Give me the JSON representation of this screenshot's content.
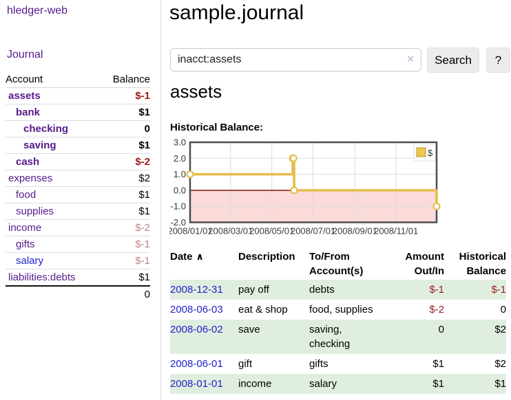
{
  "app": {
    "brand": "hledger-web",
    "nav_journal": "Journal"
  },
  "header": {
    "title": "sample.journal"
  },
  "search": {
    "query": "inacct:assets",
    "clear_icon": "×",
    "button": "Search",
    "help_button": "?"
  },
  "main": {
    "account_heading": "assets",
    "chart_label": "Historical Balance:"
  },
  "sidebar": {
    "columns": {
      "account": "Account",
      "balance": "Balance"
    },
    "accounts": [
      {
        "name": "assets",
        "level": 1,
        "bold": true,
        "name_style": "purple",
        "balance": "$-1",
        "balance_style": "neg-strong"
      },
      {
        "name": "bank",
        "level": 2,
        "bold": true,
        "name_style": "purple",
        "balance": "$1",
        "balance_style": "plain"
      },
      {
        "name": "checking",
        "level": 3,
        "bold": true,
        "name_style": "purple",
        "balance": "0",
        "balance_style": "plain"
      },
      {
        "name": "saving",
        "level": 3,
        "bold": true,
        "name_style": "purple",
        "balance": "$1",
        "balance_style": "plain"
      },
      {
        "name": "cash",
        "level": 2,
        "bold": true,
        "name_style": "purple",
        "balance": "$-2",
        "balance_style": "neg-strong"
      },
      {
        "name": "expenses",
        "level": 1,
        "bold": false,
        "name_style": "purple",
        "balance": "$2",
        "balance_style": "plain"
      },
      {
        "name": "food",
        "level": 2,
        "bold": false,
        "name_style": "purple",
        "balance": "$1",
        "balance_style": "plain"
      },
      {
        "name": "supplies",
        "level": 2,
        "bold": false,
        "name_style": "purple",
        "balance": "$1",
        "balance_style": "plain"
      },
      {
        "name": "income",
        "level": 1,
        "bold": false,
        "name_style": "purple",
        "balance": "$-2",
        "balance_style": "neg-soft"
      },
      {
        "name": "gifts",
        "level": 2,
        "bold": false,
        "name_style": "purple",
        "balance": "$-1",
        "balance_style": "neg-soft"
      },
      {
        "name": "salary",
        "level": 2,
        "bold": false,
        "name_style": "blue",
        "balance": "$-1",
        "balance_style": "neg-soft"
      },
      {
        "name": "liabilities:debts",
        "level": 1,
        "bold": false,
        "name_style": "purple",
        "balance": "$1",
        "balance_style": "plain"
      }
    ],
    "total": "0"
  },
  "chart_data": {
    "type": "line",
    "title": "Historical Balance:",
    "step": true,
    "grid": true,
    "negative_region_shaded": true,
    "legend_position": "top-right",
    "x_range": [
      "2008-01-01",
      "2008-12-31"
    ],
    "ylim": [
      -2,
      3
    ],
    "y_ticks": [
      3.0,
      2.0,
      1.0,
      0.0,
      -1.0,
      -2.0
    ],
    "x_ticks": [
      "2008/01/01",
      "2008/03/01",
      "2008/05/01",
      "2008/07/01",
      "2008/09/01",
      "2008/11/01"
    ],
    "series": [
      {
        "name": "$",
        "points": [
          {
            "date": "2008-01-01",
            "value": 1
          },
          {
            "date": "2008-06-01",
            "value": 2
          },
          {
            "date": "2008-06-02",
            "value": 2
          },
          {
            "date": "2008-06-03",
            "value": 0
          },
          {
            "date": "2008-12-31",
            "value": -1
          }
        ]
      }
    ]
  },
  "register": {
    "sort_icon": "∧",
    "columns": [
      {
        "label": "Date",
        "sorted": true,
        "align": "left"
      },
      {
        "label": "Description",
        "align": "left"
      },
      {
        "label": "To/From Account(s)",
        "align": "left"
      },
      {
        "label": "Amount Out/In",
        "align": "right"
      },
      {
        "label": "Historical Balance",
        "align": "right"
      }
    ],
    "rows": [
      {
        "date": "2008-12-31",
        "description": "pay off",
        "accounts": [
          "debts"
        ],
        "amount": "$-1",
        "amount_style": "neg",
        "balance": "$-1",
        "balance_style": "neg"
      },
      {
        "date": "2008-06-03",
        "description": "eat & shop",
        "accounts": [
          "food, supplies"
        ],
        "amount": "$-2",
        "amount_style": "neg",
        "balance": "0",
        "balance_style": "plain"
      },
      {
        "date": "2008-06-02",
        "description": "save",
        "accounts": [
          "saving,",
          "checking"
        ],
        "amount": "0",
        "amount_style": "plain",
        "balance": "$2",
        "balance_style": "plain"
      },
      {
        "date": "2008-06-01",
        "description": "gift",
        "accounts": [
          "gifts"
        ],
        "amount": "$1",
        "amount_style": "plain",
        "balance": "$2",
        "balance_style": "plain"
      },
      {
        "date": "2008-01-01",
        "description": "income",
        "accounts": [
          "salary"
        ],
        "amount": "$1",
        "amount_style": "plain",
        "balance": "$1",
        "balance_style": "plain"
      }
    ]
  },
  "colors": {
    "link_purple": "#551a8b",
    "link_blue": "#2222cc",
    "negative_strong": "#9b1b1b",
    "negative_soft": "#c28585",
    "row_stripe_green": "#e0eedf",
    "series_gold": "#e6bd4a",
    "series_gold_fill": "#ecc84e",
    "series_gold_border": "#b8942d",
    "negative_region_pink": "#fbdada",
    "zero_line_darkred": "#881111",
    "chart_border_gray": "#4d4d4d",
    "grid_gray": "#dcdcdc",
    "button_bg": "#ececec"
  }
}
